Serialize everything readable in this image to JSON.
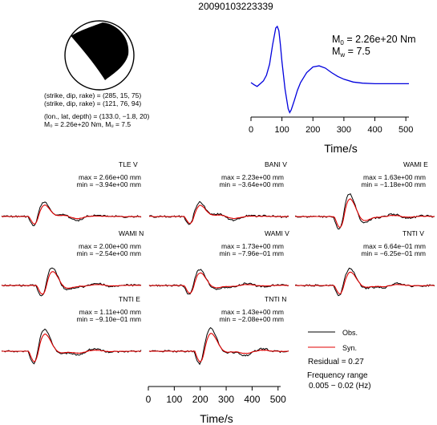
{
  "title": "20090103223339",
  "focal_mechanism": {
    "line1": "(strike, dip, rake) = (285, 15, 75)",
    "line2": "(strike, dip, rake) = (121, 76, 94)",
    "line3": "(lon., lat, depth) = (133.0, −1.8, 20)",
    "line4": "M₀ = 2.26e+20 Nm, Mᵤ = 7.5"
  },
  "stf": {
    "m0_prefix": "M",
    "m0_sub": "0",
    "m0_value": " = 2.26e+20 Nm",
    "mw_prefix": "M",
    "mw_sub": "w",
    "mw_value": " = 7.5",
    "xlabel": "Time/s"
  },
  "panels": [
    {
      "name": "TLE V",
      "max": "max = 2.66e+00 mm",
      "min": "min = −3.94e+00 mm"
    },
    {
      "name": "BANI V",
      "max": "max = 2.23e+00 mm",
      "min": "min = −3.64e+00 mm"
    },
    {
      "name": "WAMI E",
      "max": "max = 1.63e+00 mm",
      "min": "min = −1.18e+00 mm"
    },
    {
      "name": "WAMI N",
      "max": "max = 2.00e+00 mm",
      "min": "min = −2.54e+00 mm"
    },
    {
      "name": "WAMI V",
      "max": "max = 1.73e+00 mm",
      "min": "min = −7.96e−01 mm"
    },
    {
      "name": "TNTI V",
      "max": "max = 6.64e−01 mm",
      "min": "min = −6.25e−01 mm"
    },
    {
      "name": "TNTI E",
      "max": "max = 1.11e+00 mm",
      "min": "min = −9.10e−01 mm"
    },
    {
      "name": "TNTI N",
      "max": "max = 1.43e+00 mm",
      "min": "min = −2.08e+00 mm"
    }
  ],
  "legend": {
    "obs": "Obs.",
    "syn": "Syn.",
    "residual": "Residual = 0.27",
    "freq1": "Frequency range",
    "freq2": "0.005 − 0.02 (Hz)"
  },
  "bottom_xlabel": "Time/s",
  "colors": {
    "obs": "#000000",
    "syn": "#e00000",
    "stf": "#0000dd"
  },
  "chart_data": [
    {
      "type": "line",
      "name": "source time function",
      "xlabel": "Time/s",
      "xlim": [
        0,
        510
      ],
      "ticks": [
        0,
        100,
        200,
        300,
        400,
        500
      ],
      "x": [
        0,
        10,
        20,
        30,
        40,
        50,
        60,
        70,
        80,
        85,
        90,
        95,
        100,
        110,
        120,
        125,
        130,
        140,
        150,
        160,
        180,
        200,
        220,
        240,
        260,
        280,
        300,
        330,
        360,
        400,
        440,
        480,
        510
      ],
      "y": [
        0.02,
        -0.02,
        -0.05,
        0.0,
        0.05,
        0.15,
        0.35,
        0.7,
        1.0,
        1.03,
        0.95,
        0.7,
        0.4,
        -0.1,
        -0.45,
        -0.52,
        -0.47,
        -0.3,
        -0.12,
        0.02,
        0.2,
        0.3,
        0.32,
        0.28,
        0.2,
        0.13,
        0.08,
        0.03,
        0.01,
        0.0,
        0.0,
        0.0,
        0.0
      ],
      "ylim": [
        -0.6,
        1.1
      ]
    },
    {
      "type": "line",
      "name": "waveform comparison",
      "xlabel": "Time/s",
      "xlim": [
        0,
        510
      ],
      "ticks": [
        0,
        100,
        200,
        300,
        400,
        500
      ]
    }
  ]
}
